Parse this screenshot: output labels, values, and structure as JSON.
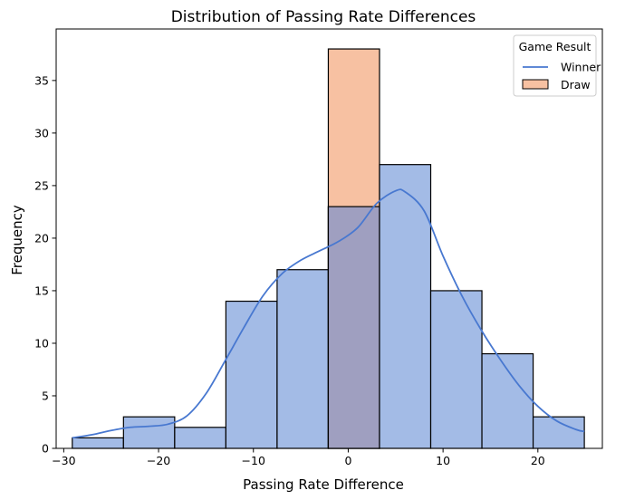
{
  "chart_data": {
    "type": "histogram",
    "title": "Distribution of Passing Rate Differences",
    "xlabel": "Passing Rate Difference",
    "ylabel": "Frequency",
    "xlim": [
      -30.8,
      26.8
    ],
    "ylim": [
      0,
      39.9
    ],
    "xticks": [
      -30,
      -20,
      -10,
      0,
      10,
      20
    ],
    "yticks": [
      0,
      5,
      10,
      15,
      20,
      25,
      30,
      35
    ],
    "grid": false,
    "legend": {
      "title": "Game Result",
      "position": "top-right",
      "entries": [
        {
          "label": "Winner",
          "kind": "line",
          "color": "#4878d0"
        },
        {
          "label": "Draw",
          "kind": "patch",
          "color": "#f7c1a2"
        }
      ]
    },
    "bins": [
      {
        "x0": -29.1,
        "x1": -23.7,
        "count": 1
      },
      {
        "x0": -23.7,
        "x1": -18.3,
        "count": 3
      },
      {
        "x0": -18.3,
        "x1": -12.9,
        "count": 2
      },
      {
        "x0": -12.9,
        "x1": -7.5,
        "count": 14
      },
      {
        "x0": -7.5,
        "x1": -2.1,
        "count": 17
      },
      {
        "x0": -2.1,
        "x1": 3.3,
        "count": 23
      },
      {
        "x0": 3.3,
        "x1": 8.7,
        "count": 27
      },
      {
        "x0": 8.7,
        "x1": 14.1,
        "count": 15
      },
      {
        "x0": 14.1,
        "x1": 19.5,
        "count": 9
      },
      {
        "x0": 19.5,
        "x1": 24.9,
        "count": 3
      }
    ],
    "series": [
      {
        "name": "Winner",
        "bin_index_counts": [
          1,
          3,
          2,
          14,
          17,
          23,
          27,
          15,
          9,
          3
        ]
      },
      {
        "name": "Draw",
        "bin_index_counts": [
          0,
          0,
          0,
          0,
          0,
          38,
          0,
          0,
          0,
          0
        ]
      }
    ],
    "kde": {
      "series": "Winner",
      "x": [
        -29.1,
        -27,
        -25,
        -23,
        -21,
        -19,
        -17,
        -15,
        -13,
        -11,
        -9,
        -7,
        -5,
        -3,
        -1,
        1,
        3,
        5,
        6,
        8,
        10,
        12,
        14,
        16,
        18,
        20,
        22,
        24,
        24.9
      ],
      "y": [
        1.0,
        1.3,
        1.7,
        2.0,
        2.1,
        2.3,
        3.1,
        5.2,
        8.3,
        11.5,
        14.5,
        16.6,
        17.9,
        18.8,
        19.7,
        21.0,
        23.3,
        24.5,
        24.4,
        22.6,
        18.3,
        14.5,
        11.3,
        8.5,
        6.0,
        4.0,
        2.6,
        1.8,
        1.6
      ]
    },
    "colors": {
      "winner_fill": "#a3bbe6",
      "winner_line": "#4878d0",
      "draw_fill": "#f7c1a2",
      "overlap_fill": "#9f9fc0",
      "edge": "#000000"
    }
  }
}
